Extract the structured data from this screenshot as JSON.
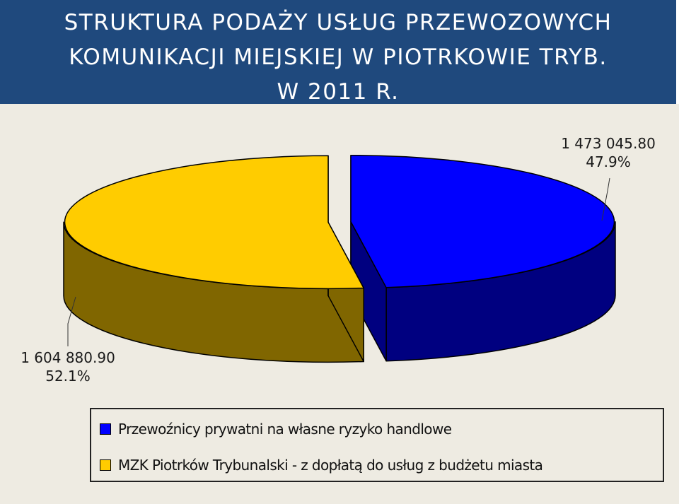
{
  "header": {
    "title_lines": [
      "STRUKTURA PODAŻY USŁUG PRZEWOZOWYCH",
      "KOMUNIKACJI MIEJSKIEJ W PIOTRKOWIE TRYB.",
      "W 2011 R."
    ]
  },
  "chart_data": {
    "type": "pie",
    "title": "STRUKTURA PODAŻY USŁUG PRZEWOZOWYCH KOMUNIKACJI MIEJSKIEJ W PIOTRKOWIE TRYB. W 2011 R.",
    "three_d": true,
    "exploded": true,
    "slices": [
      {
        "label": "Przewoźnicy prywatni na własne ryzyko handlowe",
        "value": 1473045.8,
        "value_text": "1 473 045.80",
        "percent": 47.9,
        "percent_text": "47.9%",
        "color": "#0000FF",
        "side_color": "#000080"
      },
      {
        "label": "MZK Piotrków Trybunalski - z dopłatą do usług z budżetu miasta",
        "value": 1604880.9,
        "value_text": "1 604 880.90",
        "percent": 52.1,
        "percent_text": "52.1%",
        "color": "#FFCC00",
        "side_color": "#806600"
      }
    ],
    "legend_position": "bottom"
  }
}
